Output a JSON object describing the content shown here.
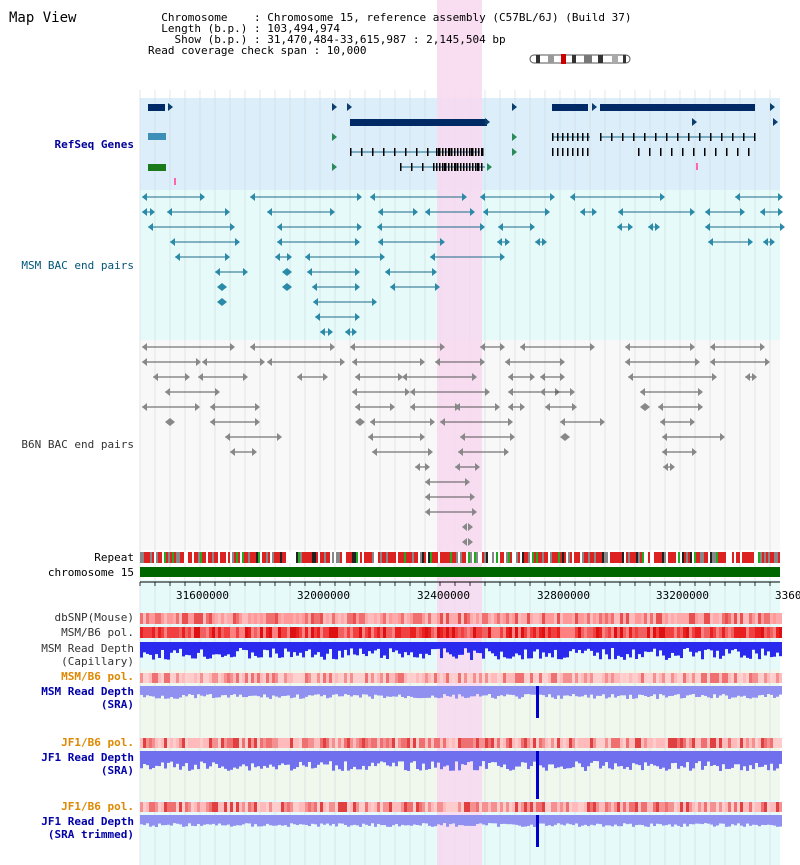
{
  "app": {
    "title": "Map View"
  },
  "info": {
    "lines": [
      "  Chromosome    : Chromosome 15, reference assembly (C57BL/6J) (Build 37)",
      "  Length (b.p.) : 103,494,974",
      "    Show (b.p.) : 31,470,484-33,615,987 : 2,145,504 bp",
      "Read coverage check span : 10,000"
    ]
  },
  "tracks": {
    "refseq": {
      "label": "RefSeq Genes"
    },
    "msm_bac": {
      "label": "MSM BAC end pairs"
    },
    "b6n_bac": {
      "label": "B6N BAC end pairs"
    },
    "repeat": {
      "label": "Repeat"
    },
    "chromosome": {
      "label": "chromosome 15"
    },
    "dbsnp": {
      "label": "dbSNP(Mouse)"
    },
    "msm_b6_pol": {
      "label": "MSM/B6 pol."
    },
    "msm_depth_cap": {
      "label": "MSM Read Depth",
      "sub": "(Capillary)"
    },
    "msm_b6_pol2": {
      "label": "MSM/B6 pol."
    },
    "msm_depth_sra": {
      "label": "MSM Read Depth",
      "sub": "(SRA)"
    },
    "jf1_b6_pol": {
      "label": "JF1/B6 pol."
    },
    "jf1_depth_sra": {
      "label": "JF1 Read Depth",
      "sub": "(SRA)"
    },
    "jf1_b6_pol2": {
      "label": "JF1/B6 pol."
    },
    "jf1_depth_trim": {
      "label": "JF1 Read Depth",
      "sub": "(SRA trimmed)"
    }
  },
  "axis": {
    "ticks": [
      "31600000",
      "32000000",
      "32400000",
      "32800000",
      "33200000",
      "3360"
    ]
  },
  "colors": {
    "refseq_label": "#000099",
    "msm_label": "#005577",
    "b6n_label": "#333333",
    "orange_label": "#dd8800",
    "blue_label": "#0000aa",
    "highlight": "#f8d8f0",
    "chromosome_bar": "#006600"
  }
}
